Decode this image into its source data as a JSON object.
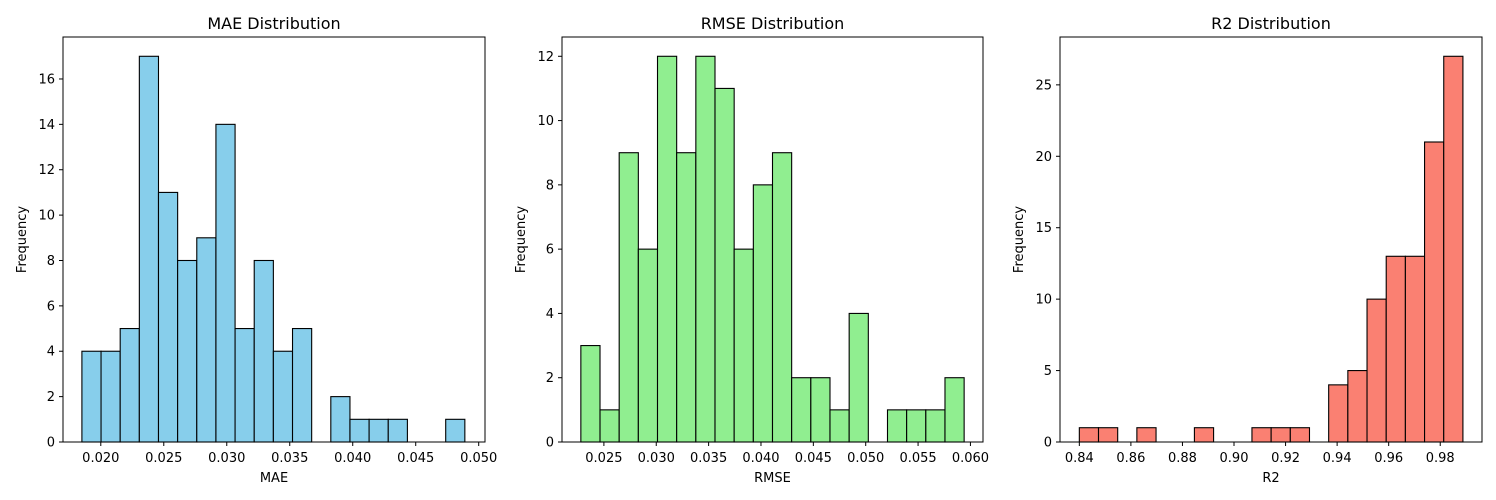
{
  "chart_data": [
    {
      "type": "bar",
      "subtype": "histogram",
      "title": "MAE Distribution",
      "xlabel": "MAE",
      "ylabel": "Frequency",
      "color": "#87CEEB",
      "edge_color": "#000000",
      "xlim": [
        0.017,
        0.0505
      ],
      "ylim": [
        0,
        17.85
      ],
      "xticks": [
        0.02,
        0.025,
        0.03,
        0.035,
        0.04,
        0.045,
        0.05
      ],
      "xtick_labels": [
        "0.020",
        "0.025",
        "0.030",
        "0.035",
        "0.040",
        "0.045",
        "0.050"
      ],
      "yticks": [
        0,
        2,
        4,
        6,
        8,
        10,
        12,
        14,
        16
      ],
      "ytick_labels": [
        "0",
        "2",
        "4",
        "6",
        "8",
        "10",
        "12",
        "14",
        "16"
      ],
      "bin_start": 0.0185,
      "bin_width": 0.00152,
      "counts": [
        4,
        4,
        5,
        17,
        11,
        8,
        9,
        14,
        5,
        8,
        4,
        5,
        0,
        2,
        1,
        1,
        1,
        0,
        0,
        1
      ]
    },
    {
      "type": "bar",
      "subtype": "histogram",
      "title": "RMSE Distribution",
      "xlabel": "RMSE",
      "ylabel": "Frequency",
      "color": "#90EE90",
      "edge_color": "#000000",
      "xlim": [
        0.021,
        0.0612
      ],
      "ylim": [
        0,
        12.6
      ],
      "xticks": [
        0.025,
        0.03,
        0.035,
        0.04,
        0.045,
        0.05,
        0.055,
        0.06
      ],
      "xtick_labels": [
        "0.025",
        "0.030",
        "0.035",
        "0.040",
        "0.045",
        "0.050",
        "0.055",
        "0.060"
      ],
      "yticks": [
        0,
        2,
        4,
        6,
        8,
        10,
        12
      ],
      "ytick_labels": [
        "0",
        "2",
        "4",
        "6",
        "8",
        "10",
        "12"
      ],
      "bin_start": 0.0228,
      "bin_width": 0.00183,
      "counts": [
        3,
        1,
        9,
        6,
        12,
        9,
        12,
        11,
        6,
        8,
        9,
        2,
        2,
        1,
        4,
        0,
        1,
        1,
        1,
        2
      ]
    },
    {
      "type": "bar",
      "subtype": "histogram",
      "title": "R2 Distribution",
      "xlabel": "R2",
      "ylabel": "Frequency",
      "color": "#FA8072",
      "edge_color": "#000000",
      "xlim": [
        0.8325,
        0.9962
      ],
      "ylim": [
        0,
        28.35
      ],
      "xticks": [
        0.84,
        0.86,
        0.88,
        0.9,
        0.92,
        0.94,
        0.96,
        0.98
      ],
      "xtick_labels": [
        "0.84",
        "0.86",
        "0.88",
        "0.90",
        "0.92",
        "0.94",
        "0.96",
        "0.98"
      ],
      "yticks": [
        0,
        5,
        10,
        15,
        20,
        25
      ],
      "ytick_labels": [
        "0",
        "5",
        "10",
        "15",
        "20",
        "25"
      ],
      "bin_start": 0.84,
      "bin_width": 0.00744,
      "counts": [
        1,
        1,
        0,
        1,
        0,
        0,
        1,
        0,
        0,
        1,
        1,
        1,
        0,
        4,
        5,
        10,
        13,
        13,
        21,
        27
      ]
    }
  ]
}
